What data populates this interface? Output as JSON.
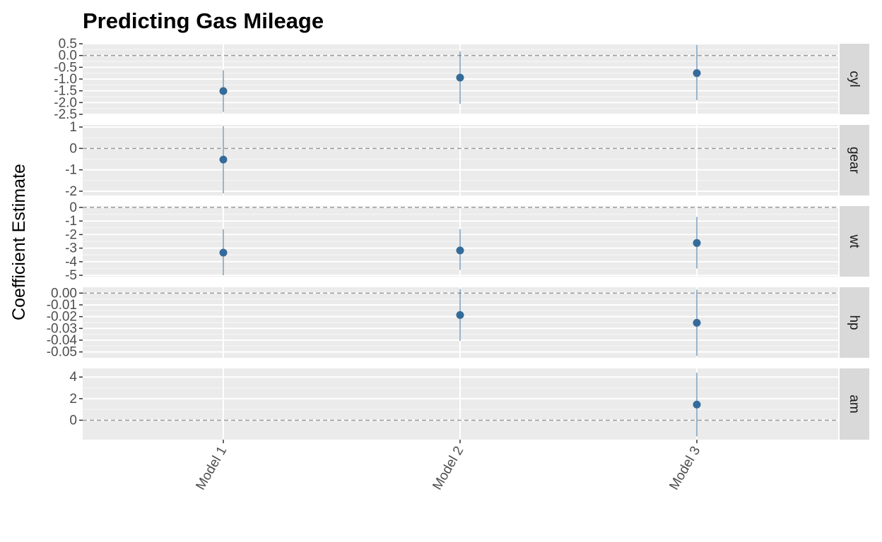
{
  "colors": {
    "panel_bg": "#ebebeb",
    "strip_bg": "#d9d9d9",
    "grid_major": "#ffffff",
    "grid_minor": "#f5f5f5",
    "zero_line": "#999999",
    "point": "#346b9a",
    "tick_text": "#4d4d4d"
  },
  "chart_data": {
    "type": "scatter",
    "title": "Predicting Gas Mileage",
    "xlabel": "",
    "ylabel": "Coefficient Estimate",
    "categories": [
      "Model 1",
      "Model 2",
      "Model 3"
    ],
    "zero_line": "dashed",
    "grid": true,
    "facets": [
      {
        "label": "cyl",
        "ylim": [
          -2.5,
          0.5
        ],
        "ticks": [
          0.5,
          0.0,
          -0.5,
          -1.0,
          -1.5,
          -2.0,
          -2.5
        ],
        "tick_labels": [
          "0.5",
          "0.0",
          "-0.5",
          "-1.0",
          "-1.5",
          "-2.0",
          "-2.5"
        ],
        "points": [
          {
            "x": "Model 1",
            "estimate": -1.51,
            "low": -2.4,
            "high": -0.62
          },
          {
            "x": "Model 2",
            "estimate": -0.94,
            "low": -2.05,
            "high": 0.18
          },
          {
            "x": "Model 3",
            "estimate": -0.75,
            "low": -1.9,
            "high": 0.45
          }
        ]
      },
      {
        "label": "gear",
        "ylim": [
          -2.2,
          1.1
        ],
        "ticks": [
          1,
          0,
          -1,
          -2
        ],
        "tick_labels": [
          "1",
          "0",
          "-1",
          "-2"
        ],
        "points": [
          {
            "x": "Model 1",
            "estimate": -0.52,
            "low": -2.1,
            "high": 1.05
          }
        ]
      },
      {
        "label": "wt",
        "ylim": [
          -5.1,
          0.1
        ],
        "ticks": [
          0,
          -1,
          -2,
          -3,
          -4,
          -5
        ],
        "tick_labels": [
          "0",
          "-1",
          "-2",
          "-3",
          "-4",
          "-5"
        ],
        "points": [
          {
            "x": "Model 1",
            "estimate": -3.33,
            "low": -5.0,
            "high": -1.6
          },
          {
            "x": "Model 2",
            "estimate": -3.17,
            "low": -4.6,
            "high": -1.6
          },
          {
            "x": "Model 3",
            "estimate": -2.62,
            "low": -4.5,
            "high": -0.7
          }
        ]
      },
      {
        "label": "hp",
        "ylim": [
          -0.055,
          0.005
        ],
        "ticks": [
          0.0,
          -0.01,
          -0.02,
          -0.03,
          -0.04,
          -0.05
        ],
        "tick_labels": [
          "0.00",
          "-0.01",
          "-0.02",
          "-0.03",
          "-0.04",
          "-0.05"
        ],
        "points": [
          {
            "x": "Model 2",
            "estimate": -0.0186,
            "low": -0.0405,
            "high": 0.0035
          },
          {
            "x": "Model 3",
            "estimate": -0.0252,
            "low": -0.0535,
            "high": 0.003
          }
        ]
      },
      {
        "label": "am",
        "ylim": [
          -1.8,
          4.8
        ],
        "ticks": [
          4,
          2,
          0
        ],
        "tick_labels": [
          "4",
          "2",
          "0"
        ],
        "points": [
          {
            "x": "Model 3",
            "estimate": 1.45,
            "low": -1.5,
            "high": 4.4
          }
        ]
      }
    ]
  }
}
